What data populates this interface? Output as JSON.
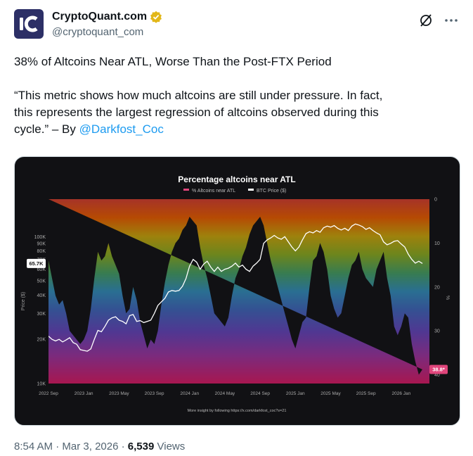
{
  "account": {
    "name": "CryptoQuant.com",
    "handle": "@cryptoquant_com"
  },
  "tweet": {
    "title": "38% of Altcoins Near ATL, Worse Than the Post-FTX Period",
    "quote_line1": "“This metric shows how much altcoins are still under pressure. In fact,",
    "quote_line2": "this represents the largest regression of altcoins observed during this",
    "quote_line3_prefix": "cycle.” – By ",
    "mention": "@Darkfost_Coc"
  },
  "chart_data": {
    "type": "line",
    "title": "Percentage altcoins near ATL",
    "legend": [
      {
        "name": "% Altcoins near ATL",
        "color": "#e0457b"
      },
      {
        "name": "BTC Price ($)",
        "color": "#ffffff"
      }
    ],
    "y_left_label": "Price ($)",
    "y_left_ticks": [
      "100K",
      "90K",
      "80K",
      "70K",
      "60K",
      "50K",
      "40K",
      "30K",
      "20K",
      "10K"
    ],
    "y_left_ticks_v": [
      100000,
      90000,
      80000,
      70000,
      60000,
      50000,
      40000,
      30000,
      20000,
      10000
    ],
    "y_right_label": "%",
    "y_right_ticks": [
      "0",
      "10",
      "20",
      "30",
      "40"
    ],
    "y_right_ticks_v": [
      0,
      10,
      20,
      30,
      40
    ],
    "x_ticks": [
      "2022 Sep",
      "2023 Jan",
      "2023 May",
      "2023 Sep",
      "2024 Jan",
      "2024 May",
      "2024 Sep",
      "2025 Jan",
      "2025 May",
      "2025 Sep",
      "2026 Jan"
    ],
    "btc_current_label": "65.7K",
    "btc_current": 65700,
    "pct_current_label": "38.8*",
    "pct_current": 38.8,
    "footer_text": "More insight by following https://x.com/darkfost_coc?s=21",
    "x": [
      0,
      0.1,
      0.2,
      0.3,
      0.4,
      0.5,
      0.6,
      0.7,
      0.8,
      0.9,
      1,
      1.1,
      1.2,
      1.3,
      1.4,
      1.5,
      1.6,
      1.7,
      1.8,
      1.9,
      2,
      2.1,
      2.2,
      2.3,
      2.4,
      2.5,
      2.6,
      2.7,
      2.8,
      2.9,
      3,
      3.1,
      3.2,
      3.3,
      3.4,
      3.5,
      3.6,
      3.7,
      3.8,
      3.9,
      4,
      4.1,
      4.2,
      4.3,
      4.4,
      4.5,
      4.6,
      4.7,
      4.8,
      4.9,
      5,
      5.1,
      5.2,
      5.3,
      5.4,
      5.5,
      5.6,
      5.7,
      5.8,
      5.9,
      6,
      6.1,
      6.2,
      6.3,
      6.4,
      6.5,
      6.6,
      6.7,
      6.8,
      6.9,
      7,
      7.1,
      7.2,
      7.3,
      7.4,
      7.5,
      7.6,
      7.7,
      7.8,
      7.9,
      8,
      8.1,
      8.2,
      8.3,
      8.4,
      8.5,
      8.6,
      8.7,
      8.8,
      8.9,
      9,
      9.1,
      9.2,
      9.3,
      9.4,
      9.5,
      9.6,
      9.7,
      9.8,
      9.9,
      10,
      10.1,
      10.2,
      10.3,
      10.4,
      10.5,
      10.6,
      10.7,
      10.8
    ],
    "btc_price": [
      21000,
      20000,
      19500,
      20000,
      19200,
      19800,
      20500,
      19000,
      18500,
      17000,
      16800,
      16600,
      17200,
      20000,
      23000,
      22500,
      24500,
      27000,
      28000,
      28500,
      27000,
      26500,
      25500,
      29000,
      29500,
      26500,
      26800,
      26000,
      26500,
      27000,
      30000,
      34000,
      36000,
      38000,
      42000,
      43000,
      42500,
      43000,
      46000,
      52000,
      63000,
      70000,
      67000,
      60000,
      65000,
      68000,
      62000,
      58000,
      62000,
      58000,
      60000,
      61000,
      63000,
      66000,
      62000,
      64000,
      60000,
      58000,
      63000,
      66000,
      70000,
      90000,
      95000,
      98000,
      102000,
      98000,
      96000,
      100000,
      92000,
      85000,
      80000,
      85000,
      95000,
      105000,
      108000,
      106000,
      110000,
      107000,
      115000,
      118000,
      116000,
      119000,
      114000,
      111000,
      114000,
      110000,
      118000,
      122000,
      120000,
      117000,
      112000,
      115000,
      110000,
      106000,
      103000,
      92000,
      88000,
      90000,
      93000,
      94000,
      89000,
      85000,
      76000,
      70000,
      66000,
      68000,
      65700
    ],
    "altcoins_near_atl_pct": [
      14,
      18,
      22,
      24,
      23,
      26,
      30,
      31,
      32,
      33,
      32,
      30,
      25,
      18,
      12,
      14,
      13,
      10,
      13,
      15,
      17,
      22,
      26,
      25,
      20,
      23,
      28,
      31,
      34,
      32,
      33,
      30,
      24,
      19,
      15,
      12,
      10,
      9,
      7,
      6,
      4,
      5,
      6,
      11,
      15,
      18,
      22,
      26,
      27,
      28,
      29,
      27,
      22,
      18,
      16,
      13,
      11,
      8,
      6,
      5,
      4,
      6,
      10,
      14,
      17,
      20,
      23,
      26,
      29,
      32,
      34,
      31,
      28,
      27,
      20,
      14,
      13,
      10,
      12,
      16,
      22,
      25,
      27,
      26,
      22,
      18,
      15,
      14,
      12,
      16,
      18,
      19,
      20,
      16,
      14,
      12,
      18,
      22,
      29,
      31,
      29,
      26,
      27,
      33,
      37,
      40,
      38.8
    ]
  },
  "meta": {
    "time": "8:54 AM",
    "separator": "·",
    "date": "Mar 3, 2026",
    "views_count": "6,539",
    "views_label": "Views"
  },
  "colors": {
    "link": "#1d9bf0",
    "verified_gold": "#e2b719",
    "avatar_bg": "#2c2f66"
  },
  "icons": {
    "verified": "verified-badge-icon",
    "grok": "grok-icon",
    "more": "more-icon"
  }
}
